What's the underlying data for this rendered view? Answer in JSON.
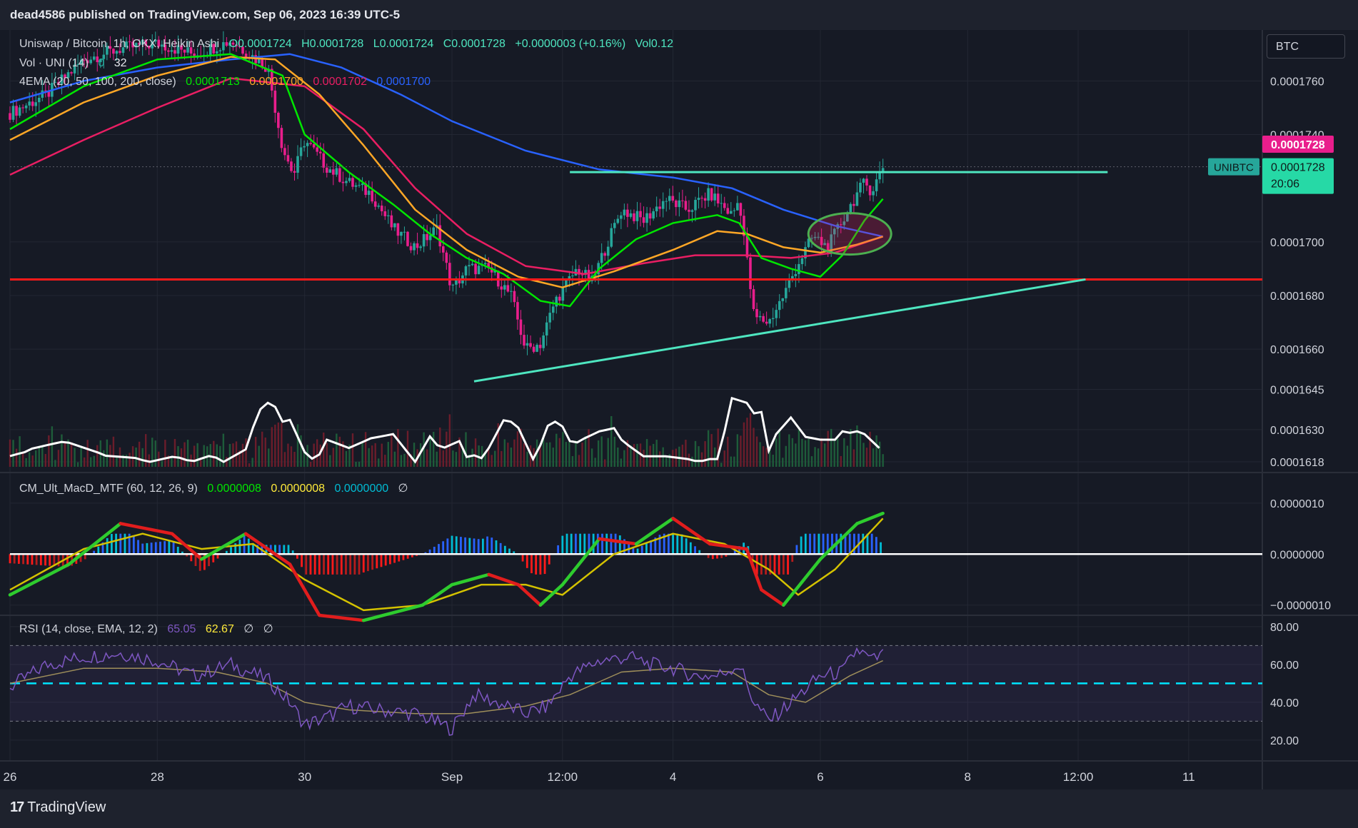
{
  "header": {
    "published_line": "dead4586 published on TradingView.com, Sep 06, 2023 16:39 UTC-5"
  },
  "footer": {
    "brand": "TradingView",
    "brand_mark": "17"
  },
  "currency_button": "BTC",
  "price_legend": {
    "symbol": "Uniswap / Bitcoin, 1h, OKX, Heikin Ashi",
    "open": "O0.0001724",
    "high": "H0.0001728",
    "low": "L0.0001724",
    "close": "C0.0001728",
    "change": "+0.0000003 (+0.16%)",
    "volume": "Vol0.12"
  },
  "vol_legend": {
    "label": "Vol · UNI (14)",
    "v1": "0",
    "v2": "32"
  },
  "ema_legend": {
    "label": "4EMA (20, 50, 100, 200, close)",
    "ema20": "0.0001713",
    "ema50": "0.0001700",
    "ema100": "0.0001702",
    "ema200": "0.0001700"
  },
  "macd_legend": {
    "label": "CM_Ult_MacD_MTF (60, 12, 26, 9)",
    "v1": "0.0000008",
    "v2": "0.0000008",
    "v3": "0.0000000",
    "v4": "∅"
  },
  "rsi_legend": {
    "label": "RSI (14, close, EMA, 12, 2)",
    "v1": "65.05",
    "v2": "62.67",
    "v3": "∅",
    "v4": "∅"
  },
  "price_badges": {
    "current_price": "0.0001728",
    "symbol_tag": "UNIBTC",
    "last_price": "0.0001728",
    "countdown": "20:06"
  },
  "colors": {
    "background": "#161a25",
    "grid": "#232733",
    "bull_candle": "#26a69a",
    "bear_candle": "#e91e8c",
    "ema20": "#00e600",
    "ema50": "#ffa726",
    "ema100": "#e91e63",
    "ema200": "#2962ff",
    "support_line": "#ff1a1a",
    "trendline": "#4ee6c0",
    "rsi": "#7e57c2",
    "highlight_circle": "#4caf50"
  },
  "chart_data": [
    {
      "type": "candlestick",
      "title": "Uniswap / Bitcoin, 1h, OKX, Heikin Ashi",
      "x_tick_labels": [
        "26",
        "28",
        "30",
        "Sep",
        "12:00",
        "4",
        "6",
        "8",
        "12:00",
        "11"
      ],
      "x_tick_values": [
        26,
        28,
        30,
        32,
        33.5,
        35,
        37,
        39,
        40.5,
        42
      ],
      "x_unit": "day (Aug 26 = 26, Sep 1 = 32)",
      "y_tick_labels": [
        "0.0001760",
        "0.0001740",
        "0.0001700",
        "0.0001680",
        "0.0001660",
        "0.0001645",
        "0.0001630",
        "0.0001618"
      ],
      "y_ticks": [
        0.000176,
        0.000174,
        0.00017,
        0.000168,
        0.000166,
        0.0001645,
        0.000163,
        0.0001618
      ],
      "ylim": [
        0.0001614,
        0.0001779
      ],
      "xlim": [
        26,
        43
      ],
      "price_path": [
        [
          26.0,
          0.0001748
        ],
        [
          26.5,
          0.0001755
        ],
        [
          27.0,
          0.0001768
        ],
        [
          27.5,
          0.0001772
        ],
        [
          28.0,
          0.0001774
        ],
        [
          28.5,
          0.000177
        ],
        [
          29.0,
          0.0001775
        ],
        [
          29.5,
          0.0001765
        ],
        [
          29.7,
          0.0001735
        ],
        [
          29.85,
          0.0001725
        ],
        [
          30.0,
          0.0001738
        ],
        [
          30.3,
          0.0001728
        ],
        [
          30.6,
          0.0001722
        ],
        [
          30.9,
          0.0001718
        ],
        [
          31.2,
          0.0001705
        ],
        [
          31.5,
          0.0001698
        ],
        [
          31.8,
          0.0001705
        ],
        [
          32.0,
          0.0001682
        ],
        [
          32.2,
          0.000169
        ],
        [
          32.5,
          0.000169
        ],
        [
          32.8,
          0.000168
        ],
        [
          33.0,
          0.000166
        ],
        [
          33.2,
          0.0001662
        ],
        [
          33.4,
          0.0001678
        ],
        [
          33.7,
          0.000169
        ],
        [
          33.9,
          0.0001685
        ],
        [
          34.1,
          0.0001699
        ],
        [
          34.3,
          0.0001712
        ],
        [
          34.6,
          0.0001708
        ],
        [
          34.9,
          0.0001716
        ],
        [
          35.2,
          0.0001712
        ],
        [
          35.5,
          0.0001718
        ],
        [
          35.8,
          0.000171
        ],
        [
          35.9,
          0.0001716
        ],
        [
          36.1,
          0.0001672
        ],
        [
          36.3,
          0.000167
        ],
        [
          36.5,
          0.000168
        ],
        [
          36.7,
          0.0001692
        ],
        [
          36.9,
          0.0001702
        ],
        [
          37.1,
          0.0001698
        ],
        [
          37.3,
          0.0001708
        ],
        [
          37.5,
          0.0001718
        ],
        [
          37.6,
          0.0001722
        ],
        [
          37.7,
          0.0001719
        ],
        [
          37.85,
          0.0001728
        ]
      ],
      "ema20_path": [
        [
          26,
          0.0001742
        ],
        [
          27,
          0.0001758
        ],
        [
          28,
          0.0001768
        ],
        [
          29,
          0.000177
        ],
        [
          29.7,
          0.0001762
        ],
        [
          30,
          0.000174
        ],
        [
          30.6,
          0.0001726
        ],
        [
          31.2,
          0.0001714
        ],
        [
          31.7,
          0.0001703
        ],
        [
          32.2,
          0.0001694
        ],
        [
          32.7,
          0.0001688
        ],
        [
          33.2,
          0.0001678
        ],
        [
          33.6,
          0.0001676
        ],
        [
          34.0,
          0.000169
        ],
        [
          34.5,
          0.0001701
        ],
        [
          35.0,
          0.0001707
        ],
        [
          35.6,
          0.000171
        ],
        [
          35.9,
          0.0001707
        ],
        [
          36.2,
          0.0001694
        ],
        [
          36.6,
          0.000169
        ],
        [
          37.0,
          0.0001687
        ],
        [
          37.3,
          0.0001695
        ],
        [
          37.6,
          0.0001708
        ],
        [
          37.85,
          0.0001716
        ]
      ],
      "ema50_path": [
        [
          26,
          0.0001738
        ],
        [
          27,
          0.0001752
        ],
        [
          28,
          0.0001762
        ],
        [
          29,
          0.0001769
        ],
        [
          29.6,
          0.0001768
        ],
        [
          30.2,
          0.0001755
        ],
        [
          30.8,
          0.0001736
        ],
        [
          31.5,
          0.0001712
        ],
        [
          32.2,
          0.0001697
        ],
        [
          32.9,
          0.0001687
        ],
        [
          33.5,
          0.0001683
        ],
        [
          34.2,
          0.0001689
        ],
        [
          35.0,
          0.0001697
        ],
        [
          35.6,
          0.0001704
        ],
        [
          36.0,
          0.0001703
        ],
        [
          36.5,
          0.0001698
        ],
        [
          37.0,
          0.0001696
        ],
        [
          37.5,
          0.0001699
        ],
        [
          37.85,
          0.0001702
        ]
      ],
      "ema100_path": [
        [
          26,
          0.0001725
        ],
        [
          27,
          0.0001738
        ],
        [
          28,
          0.000175
        ],
        [
          29,
          0.0001761
        ],
        [
          30,
          0.0001758
        ],
        [
          30.8,
          0.0001742
        ],
        [
          31.5,
          0.000172
        ],
        [
          32.2,
          0.0001703
        ],
        [
          33,
          0.0001691
        ],
        [
          33.8,
          0.0001688
        ],
        [
          34.6,
          0.0001692
        ],
        [
          35.3,
          0.0001695
        ],
        [
          36.0,
          0.0001695
        ],
        [
          36.6,
          0.0001694
        ],
        [
          37.2,
          0.0001696
        ],
        [
          37.85,
          0.0001702
        ]
      ],
      "ema200_path": [
        [
          26,
          0.0001752
        ],
        [
          27,
          0.000176
        ],
        [
          28,
          0.0001765
        ],
        [
          29,
          0.0001768
        ],
        [
          29.8,
          0.000177
        ],
        [
          30.5,
          0.0001765
        ],
        [
          31.3,
          0.0001755
        ],
        [
          32.0,
          0.0001745
        ],
        [
          33.0,
          0.0001734
        ],
        [
          34.0,
          0.0001727
        ],
        [
          35.0,
          0.0001724
        ],
        [
          35.8,
          0.000172
        ],
        [
          36.5,
          0.0001712
        ],
        [
          37.2,
          0.0001706
        ],
        [
          37.85,
          0.0001702
        ]
      ],
      "resistance_line": [
        [
          33.6,
          0.0001726
        ],
        [
          40.9,
          0.0001726
        ]
      ],
      "support_line": 0.0001686,
      "ascending_trendline": [
        [
          32.3,
          0.0001648
        ],
        [
          40.6,
          0.0001686
        ]
      ],
      "highlight_ellipse_center": [
        37.4,
        0.0001703
      ],
      "current_price": 0.0001728
    },
    {
      "type": "bar",
      "title": "Vol · UNI (14)",
      "note": "volume histogram with moving average line, no numeric axis"
    },
    {
      "type": "line",
      "title": "CM_Ult_MacD_MTF (60, 12, 26, 9)",
      "y_tick_labels": [
        "0.0000010",
        "0.0000000",
        "−0.0000010"
      ],
      "y_ticks": [
        1e-06,
        0,
        -1e-06
      ],
      "ylim": [
        -1.2e-06,
        1.6e-06
      ],
      "macd_path": [
        [
          26,
          -8e-07
        ],
        [
          26.8,
          -2e-07
        ],
        [
          27.5,
          6e-07
        ],
        [
          28.2,
          4e-07
        ],
        [
          28.6,
          -1e-07
        ],
        [
          29.2,
          4e-07
        ],
        [
          29.8,
          -2e-07
        ],
        [
          30.2,
          -1.2e-06
        ],
        [
          30.8,
          -1.3e-06
        ],
        [
          31.6,
          -1e-06
        ],
        [
          32.0,
          -6e-07
        ],
        [
          32.5,
          -4e-07
        ],
        [
          32.9,
          -6e-07
        ],
        [
          33.2,
          -1e-06
        ],
        [
          33.5,
          -6e-07
        ],
        [
          34.0,
          3e-07
        ],
        [
          34.5,
          2e-07
        ],
        [
          35.0,
          7e-07
        ],
        [
          35.5,
          2e-07
        ],
        [
          36.0,
          1e-07
        ],
        [
          36.2,
          -7e-07
        ],
        [
          36.5,
          -1e-06
        ],
        [
          37.0,
          -1e-07
        ],
        [
          37.5,
          6e-07
        ],
        [
          37.85,
          8e-07
        ]
      ],
      "signal_path": [
        [
          26,
          -7e-07
        ],
        [
          27,
          1e-07
        ],
        [
          27.8,
          4e-07
        ],
        [
          28.6,
          1e-07
        ],
        [
          29.3,
          2e-07
        ],
        [
          30.0,
          -5e-07
        ],
        [
          30.8,
          -1.1e-06
        ],
        [
          31.6,
          -1e-06
        ],
        [
          32.4,
          -6e-07
        ],
        [
          33.0,
          -6e-07
        ],
        [
          33.5,
          -8e-07
        ],
        [
          34.2,
          0.0
        ],
        [
          35.0,
          4e-07
        ],
        [
          35.7,
          2e-07
        ],
        [
          36.3,
          -3e-07
        ],
        [
          36.7,
          -8e-07
        ],
        [
          37.2,
          -3e-07
        ],
        [
          37.85,
          7e-07
        ]
      ]
    },
    {
      "type": "line",
      "title": "RSI (14, close, EMA, 12, 2)",
      "y_tick_labels": [
        "80.00",
        "60.00",
        "40.00",
        "20.00"
      ],
      "y_ticks": [
        80,
        60,
        40,
        20
      ],
      "ylim": [
        9,
        86
      ],
      "bands": [
        30,
        50,
        70
      ],
      "rsi_path": [
        [
          26,
          48
        ],
        [
          26.5,
          60
        ],
        [
          27.0,
          64
        ],
        [
          27.5,
          66
        ],
        [
          28.0,
          62
        ],
        [
          28.5,
          54
        ],
        [
          29.0,
          60
        ],
        [
          29.5,
          52
        ],
        [
          29.8,
          40
        ],
        [
          30.0,
          28
        ],
        [
          30.3,
          32
        ],
        [
          30.6,
          38
        ],
        [
          31.0,
          36
        ],
        [
          31.5,
          34
        ],
        [
          32.0,
          26
        ],
        [
          32.3,
          44
        ],
        [
          32.6,
          40
        ],
        [
          33.0,
          34
        ],
        [
          33.3,
          38
        ],
        [
          33.6,
          54
        ],
        [
          34.0,
          62
        ],
        [
          34.4,
          64
        ],
        [
          34.7,
          60
        ],
        [
          35.0,
          58
        ],
        [
          35.3,
          54
        ],
        [
          35.6,
          54
        ],
        [
          35.9,
          60
        ],
        [
          36.1,
          40
        ],
        [
          36.3,
          30
        ],
        [
          36.6,
          40
        ],
        [
          37.0,
          54
        ],
        [
          37.3,
          56
        ],
        [
          37.5,
          68
        ],
        [
          37.7,
          62
        ],
        [
          37.85,
          65
        ]
      ],
      "rsi_ma_path": [
        [
          26,
          50
        ],
        [
          27,
          58
        ],
        [
          28,
          58
        ],
        [
          28.8,
          56
        ],
        [
          29.5,
          50
        ],
        [
          30.0,
          40
        ],
        [
          30.6,
          36
        ],
        [
          31.5,
          34
        ],
        [
          32.2,
          34
        ],
        [
          33.0,
          38
        ],
        [
          33.6,
          44
        ],
        [
          34.3,
          56
        ],
        [
          35.0,
          58
        ],
        [
          35.8,
          56
        ],
        [
          36.3,
          44
        ],
        [
          36.8,
          40
        ],
        [
          37.4,
          54
        ],
        [
          37.85,
          62
        ]
      ]
    }
  ]
}
